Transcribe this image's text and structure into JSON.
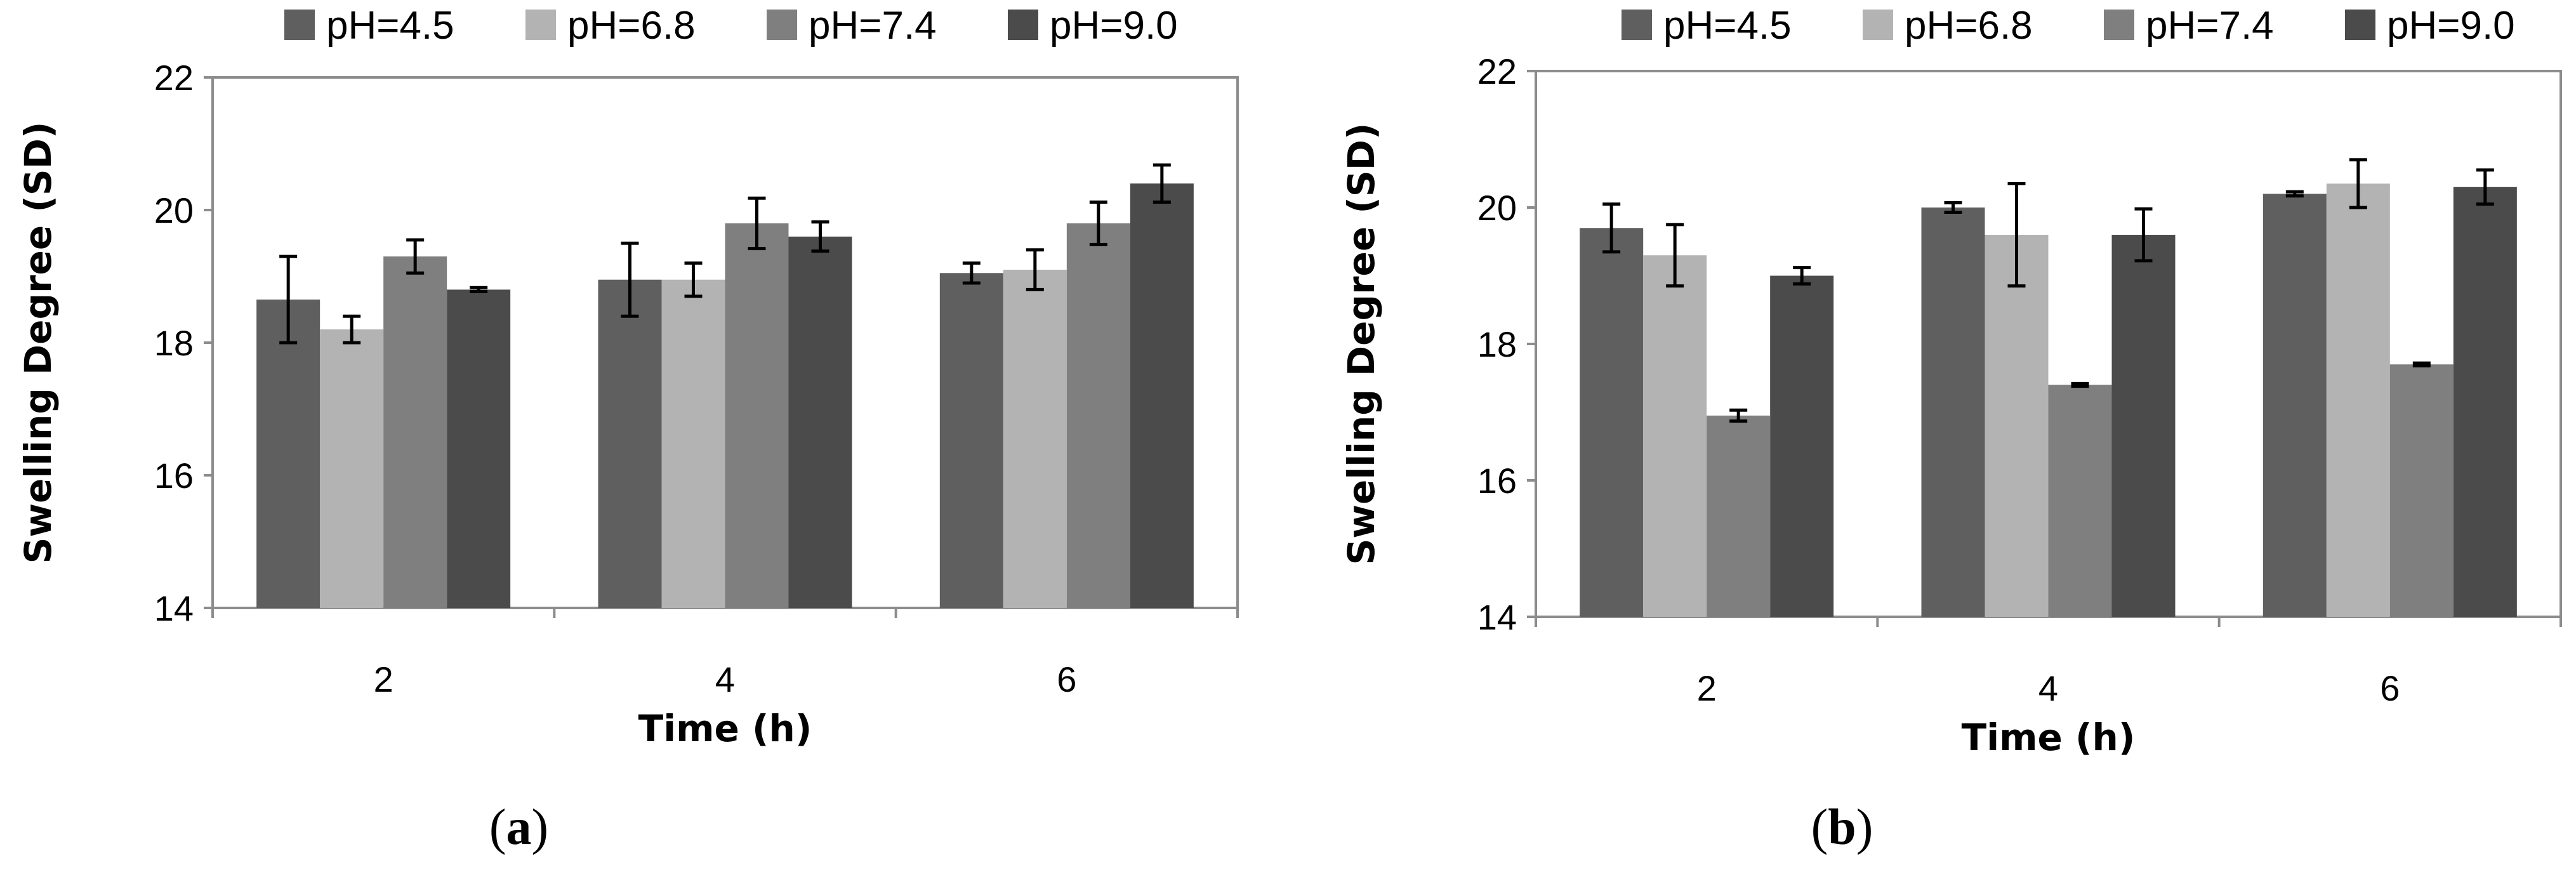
{
  "colors": {
    "pH=4.5": "#5f5f5f",
    "pH=6.8": "#b3b3b3",
    "pH=7.4": "#7f7f7f",
    "pH=9.0": "#4b4b4b",
    "frame": "#8c8c8c",
    "errorbar": "#000000"
  },
  "chart_data": [
    {
      "type": "bar",
      "panel_label": "a",
      "categories": [
        "2",
        "4",
        "6"
      ],
      "xlabel": "Time (h)",
      "ylabel": "Swelling Degree (SD)",
      "ylim": [
        14,
        22
      ],
      "yticks": [
        "14",
        "16",
        "18",
        "20",
        "22"
      ],
      "legend": [
        "pH=4.5",
        "pH=6.8",
        "pH=7.4",
        "pH=9.0"
      ],
      "legend_position": "top",
      "series": [
        {
          "name": "pH=4.5",
          "values": [
            18.65,
            18.95,
            19.05
          ],
          "errors": [
            0.65,
            0.55,
            0.15
          ]
        },
        {
          "name": "pH=6.8",
          "values": [
            18.2,
            18.95,
            19.1
          ],
          "errors": [
            0.2,
            0.25,
            0.3
          ]
        },
        {
          "name": "pH=7.4",
          "values": [
            19.3,
            19.8,
            19.8
          ],
          "errors": [
            0.25,
            0.38,
            0.32
          ]
        },
        {
          "name": "pH=9.0",
          "values": [
            18.8,
            19.6,
            20.4
          ],
          "errors": [
            0.03,
            0.22,
            0.28
          ]
        }
      ]
    },
    {
      "type": "bar",
      "panel_label": "b",
      "categories": [
        "2",
        "4",
        "6"
      ],
      "xlabel": "Time (h)",
      "ylabel": "Swelling Degree (SD)",
      "ylim": [
        14,
        22
      ],
      "yticks": [
        "14",
        "16",
        "18",
        "20",
        "22"
      ],
      "legend": [
        "pH=4.5",
        "pH=6.8",
        "pH=7.4",
        "pH=9.0"
      ],
      "legend_position": "top",
      "series": [
        {
          "name": "pH=4.5",
          "values": [
            19.7,
            20.0,
            20.2
          ],
          "errors": [
            0.35,
            0.07,
            0.03
          ]
        },
        {
          "name": "pH=6.8",
          "values": [
            19.3,
            19.6,
            20.35
          ],
          "errors": [
            0.45,
            0.75,
            0.35
          ]
        },
        {
          "name": "pH=7.4",
          "values": [
            16.95,
            17.4,
            17.7
          ],
          "errors": [
            0.08,
            0.02,
            0.02
          ]
        },
        {
          "name": "pH=9.0",
          "values": [
            19.0,
            19.6,
            20.3
          ],
          "errors": [
            0.12,
            0.38,
            0.25
          ]
        }
      ]
    }
  ]
}
